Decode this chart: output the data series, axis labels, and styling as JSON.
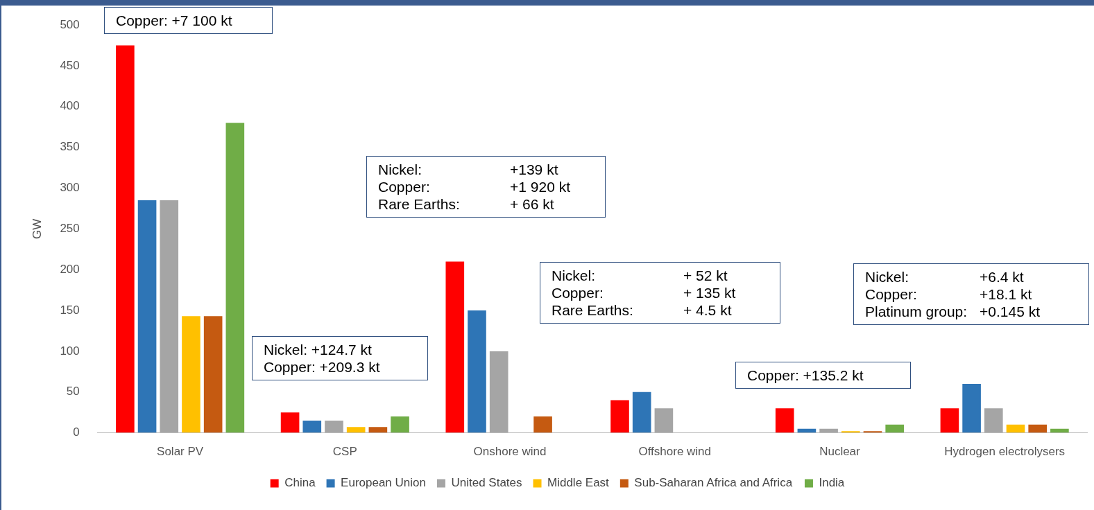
{
  "chart_data": {
    "type": "bar",
    "ylabel": "GW",
    "categories": [
      "Solar PV",
      "CSP",
      "Onshore wind",
      "Offshore wind",
      "Nuclear",
      "Hydrogen electrolysers"
    ],
    "series": [
      {
        "name": "China",
        "color": "#ff0000",
        "values": [
          475,
          25,
          210,
          40,
          30,
          30
        ]
      },
      {
        "name": "European Union",
        "color": "#2e75b6",
        "values": [
          285,
          15,
          150,
          50,
          5,
          60
        ]
      },
      {
        "name": "United States",
        "color": "#a5a5a5",
        "values": [
          285,
          15,
          100,
          30,
          5,
          30
        ]
      },
      {
        "name": "Middle East",
        "color": "#ffc000",
        "values": [
          143,
          7,
          null,
          null,
          2,
          10
        ]
      },
      {
        "name": "Sub-Saharan Africa and Africa",
        "color": "#c55a11",
        "values": [
          143,
          7,
          20,
          null,
          2,
          10
        ]
      },
      {
        "name": "India",
        "color": "#70ad47",
        "values": [
          380,
          20,
          null,
          null,
          10,
          5
        ]
      }
    ],
    "ylim": [
      0,
      500
    ],
    "yticks": [
      0,
      50,
      100,
      150,
      200,
      250,
      300,
      350,
      400,
      450,
      500
    ],
    "legend": "bottom",
    "annotations": [
      "Copper: +7 100 kt",
      "Nickel: +124.7 kt\nCopper: +209.3 kt",
      "Nickel:\t+139 kt\nCopper:\t+1 920 kt\nRare Earths:\t+ 66 kt",
      "Nickel:\t+ 52 kt\nCopper:\t+ 135 kt\nRare Earths:\t+ 4.5 kt",
      "Copper: +135.2 kt",
      "Nickel:\t+6.4 kt\nCopper:\t+18.1 kt\nPlatinum group:\t+0.145 kt"
    ]
  }
}
